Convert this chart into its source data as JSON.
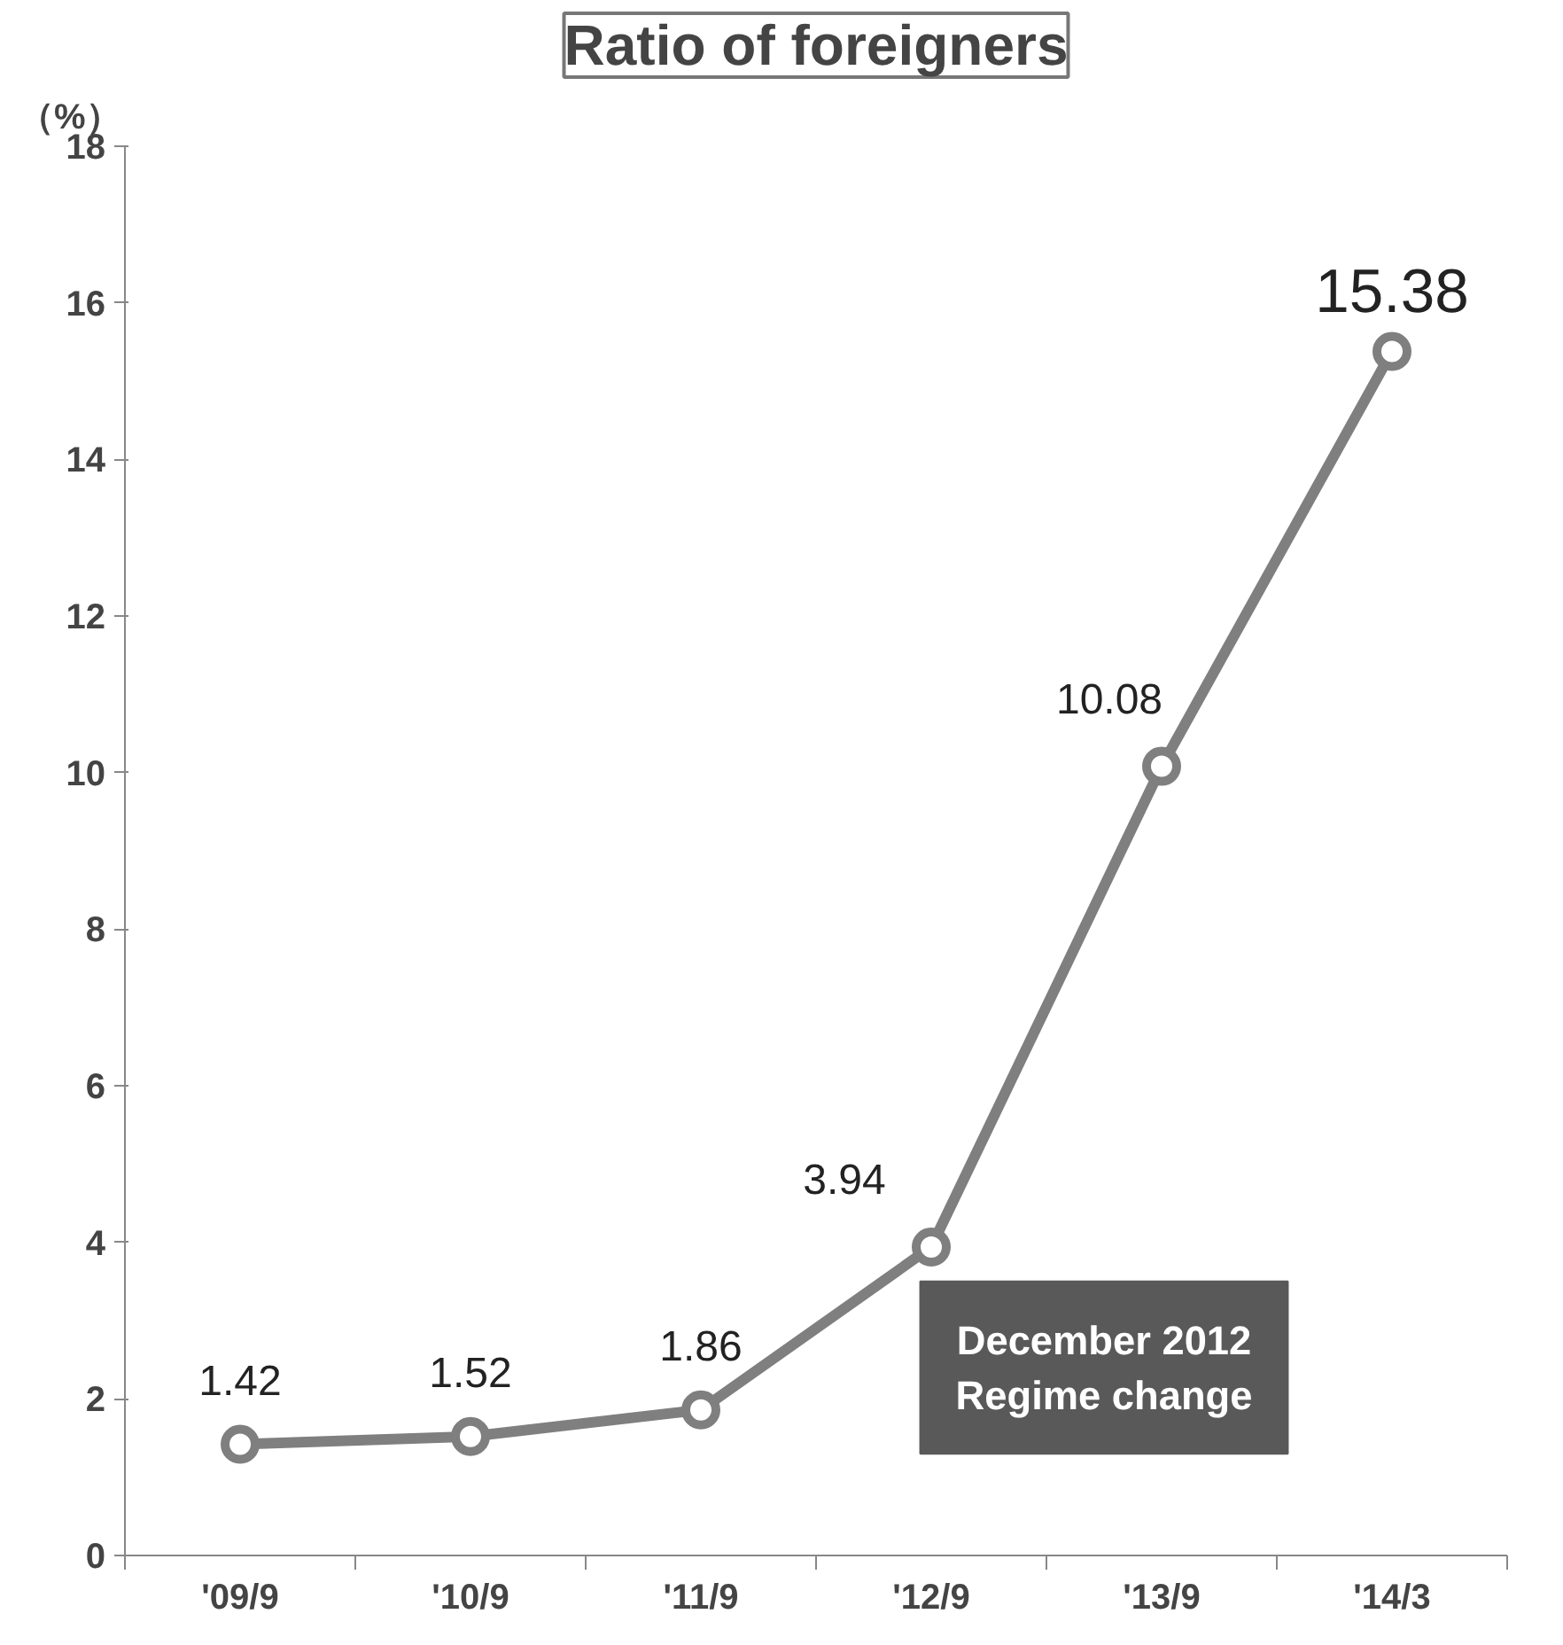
{
  "chart_data": {
    "type": "line",
    "title": "Ratio of foreigners",
    "ylabel": "（%）",
    "categories": [
      "'09/9",
      "'10/9",
      "'11/9",
      "'12/9",
      "'13/9",
      "'14/3"
    ],
    "values": [
      1.42,
      1.52,
      1.86,
      3.94,
      10.08,
      15.38
    ],
    "color": "#7f7f7f",
    "ylim": [
      0,
      18
    ],
    "yticks": [
      0,
      2,
      4,
      6,
      8,
      10,
      12,
      14,
      16,
      18
    ],
    "grid": false,
    "marker": "circle",
    "line_style": "solid",
    "data_labels": true,
    "annotations": [
      "December 2012\nRegime change"
    ]
  }
}
